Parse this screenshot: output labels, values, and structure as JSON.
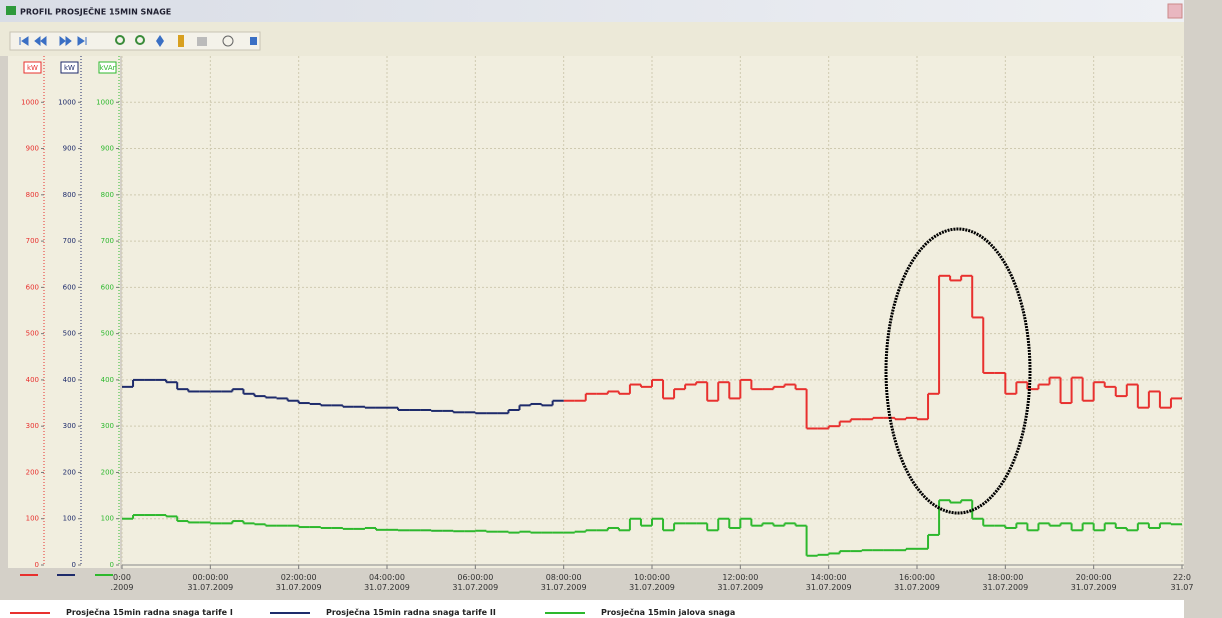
{
  "window": {
    "title": "PROFIL PROSJEČNE 15MIN SNAGE"
  },
  "chart_data": {
    "type": "step",
    "y_axes": [
      {
        "unit": "kW",
        "color": "#e8302e",
        "ylim": [
          0,
          1100
        ],
        "yticks": [
          0,
          100,
          200,
          300,
          400,
          500,
          600,
          700,
          800,
          900,
          1000
        ]
      },
      {
        "unit": "kW",
        "color": "#1e2b6b",
        "ylim": [
          0,
          1100
        ],
        "yticks": [
          0,
          100,
          200,
          300,
          400,
          500,
          600,
          700,
          800,
          900,
          1000
        ]
      },
      {
        "unit": "kVAr",
        "color": "#2db82d",
        "ylim": [
          0,
          1100
        ],
        "yticks": [
          0,
          100,
          200,
          300,
          400,
          500,
          600,
          700,
          800,
          900,
          1000
        ]
      }
    ],
    "xlim": [
      -2,
      22
    ],
    "xticks": [
      {
        "value": -2,
        "label": "0:00\n.2009"
      },
      {
        "value": 0,
        "label": "00:00:00\n31.07.2009"
      },
      {
        "value": 2,
        "label": "02:00:00\n31.07.2009"
      },
      {
        "value": 4,
        "label": "04:00:00\n31.07.2009"
      },
      {
        "value": 6,
        "label": "06:00:00\n31.07.2009"
      },
      {
        "value": 8,
        "label": "08:00:00\n31.07.2009"
      },
      {
        "value": 10,
        "label": "10:00:00\n31.07.2009"
      },
      {
        "value": 12,
        "label": "12:00:00\n31.07.2009"
      },
      {
        "value": 14,
        "label": "14:00:00\n31.07.2009"
      },
      {
        "value": 16,
        "label": "16:00:00\n31.07.2009"
      },
      {
        "value": 18,
        "label": "18:00:00\n31.07.2009"
      },
      {
        "value": 20,
        "label": "20:00:00\n31.07.2009"
      },
      {
        "value": 22,
        "label": "22:0\n31.07"
      }
    ],
    "grid": true,
    "x": [
      -2,
      -1.75,
      -1.5,
      -1.25,
      -1,
      -0.75,
      -0.5,
      -0.25,
      0,
      0.25,
      0.5,
      0.75,
      1,
      1.25,
      1.5,
      1.75,
      2,
      2.25,
      2.5,
      2.75,
      3,
      3.25,
      3.5,
      3.75,
      4,
      4.25,
      4.5,
      4.75,
      5,
      5.25,
      5.5,
      5.75,
      6,
      6.25,
      6.5,
      6.75,
      7,
      7.25,
      7.5,
      7.75,
      8,
      8.25,
      8.5,
      8.75,
      9,
      9.25,
      9.5,
      9.75,
      10,
      10.25,
      10.5,
      10.75,
      11,
      11.25,
      11.5,
      11.75,
      12,
      12.25,
      12.5,
      12.75,
      13,
      13.25,
      13.5,
      13.75,
      14,
      14.25,
      14.5,
      14.75,
      15,
      15.25,
      15.5,
      15.75,
      16,
      16.25,
      16.5,
      16.75,
      17,
      17.25,
      17.5,
      17.75,
      18,
      18.25,
      18.5,
      18.75,
      19,
      19.25,
      19.5,
      19.75,
      20,
      20.25,
      20.5,
      20.75,
      21,
      21.25,
      21.5,
      21.75
    ],
    "series": [
      {
        "name": "Prosječna 15min radna snaga tarife I",
        "color": "#e8302e",
        "axis": 0,
        "values": [
          null,
          null,
          null,
          null,
          null,
          null,
          null,
          null,
          null,
          null,
          null,
          null,
          null,
          null,
          null,
          null,
          null,
          null,
          null,
          null,
          null,
          null,
          null,
          null,
          null,
          null,
          null,
          null,
          null,
          null,
          null,
          null,
          null,
          null,
          null,
          null,
          null,
          null,
          null,
          null,
          355,
          355,
          370,
          370,
          375,
          370,
          390,
          385,
          400,
          360,
          380,
          390,
          395,
          355,
          395,
          360,
          400,
          380,
          380,
          385,
          390,
          380,
          295,
          295,
          300,
          310,
          315,
          315,
          318,
          318,
          315,
          318,
          315,
          370,
          625,
          615,
          625,
          535,
          415,
          415,
          370,
          395,
          380,
          390,
          405,
          350,
          405,
          355,
          395,
          385,
          365,
          390,
          340,
          375,
          340,
          360
        ]
      },
      {
        "name": "Prosječna 15min radna snaga tarife II",
        "color": "#1e2b6b",
        "axis": 1,
        "values": [
          385,
          400,
          400,
          400,
          395,
          380,
          375,
          375,
          375,
          375,
          380,
          370,
          365,
          362,
          360,
          355,
          350,
          348,
          345,
          345,
          342,
          342,
          340,
          340,
          340,
          335,
          335,
          335,
          333,
          333,
          330,
          330,
          328,
          328,
          328,
          335,
          345,
          348,
          345,
          355,
          null,
          null,
          null,
          null,
          null,
          null,
          null,
          null,
          null,
          null,
          null,
          null,
          null,
          null,
          null,
          null,
          null,
          null,
          null,
          null,
          null,
          null,
          null,
          null,
          null,
          null,
          null,
          null,
          null,
          null,
          null,
          null,
          null,
          null,
          null,
          null,
          null,
          null,
          null,
          null,
          null,
          null,
          null,
          null,
          null,
          null,
          null,
          null,
          null,
          null,
          null,
          null,
          null,
          null,
          null,
          null
        ]
      },
      {
        "name": "Prosječna 15min jalova snaga",
        "color": "#2db82d",
        "axis": 2,
        "values": [
          100,
          108,
          108,
          108,
          105,
          95,
          92,
          92,
          90,
          90,
          95,
          90,
          88,
          85,
          85,
          85,
          82,
          82,
          80,
          80,
          78,
          78,
          80,
          76,
          76,
          75,
          75,
          75,
          74,
          74,
          73,
          73,
          74,
          72,
          72,
          70,
          72,
          70,
          70,
          70,
          70,
          72,
          75,
          75,
          80,
          75,
          100,
          85,
          100,
          75,
          90,
          90,
          90,
          75,
          100,
          80,
          100,
          85,
          90,
          85,
          90,
          85,
          20,
          22,
          25,
          30,
          30,
          32,
          32,
          32,
          32,
          35,
          35,
          65,
          140,
          135,
          140,
          100,
          85,
          85,
          80,
          90,
          75,
          90,
          85,
          90,
          75,
          90,
          75,
          90,
          80,
          75,
          90,
          80,
          90,
          88
        ]
      }
    ]
  }
}
